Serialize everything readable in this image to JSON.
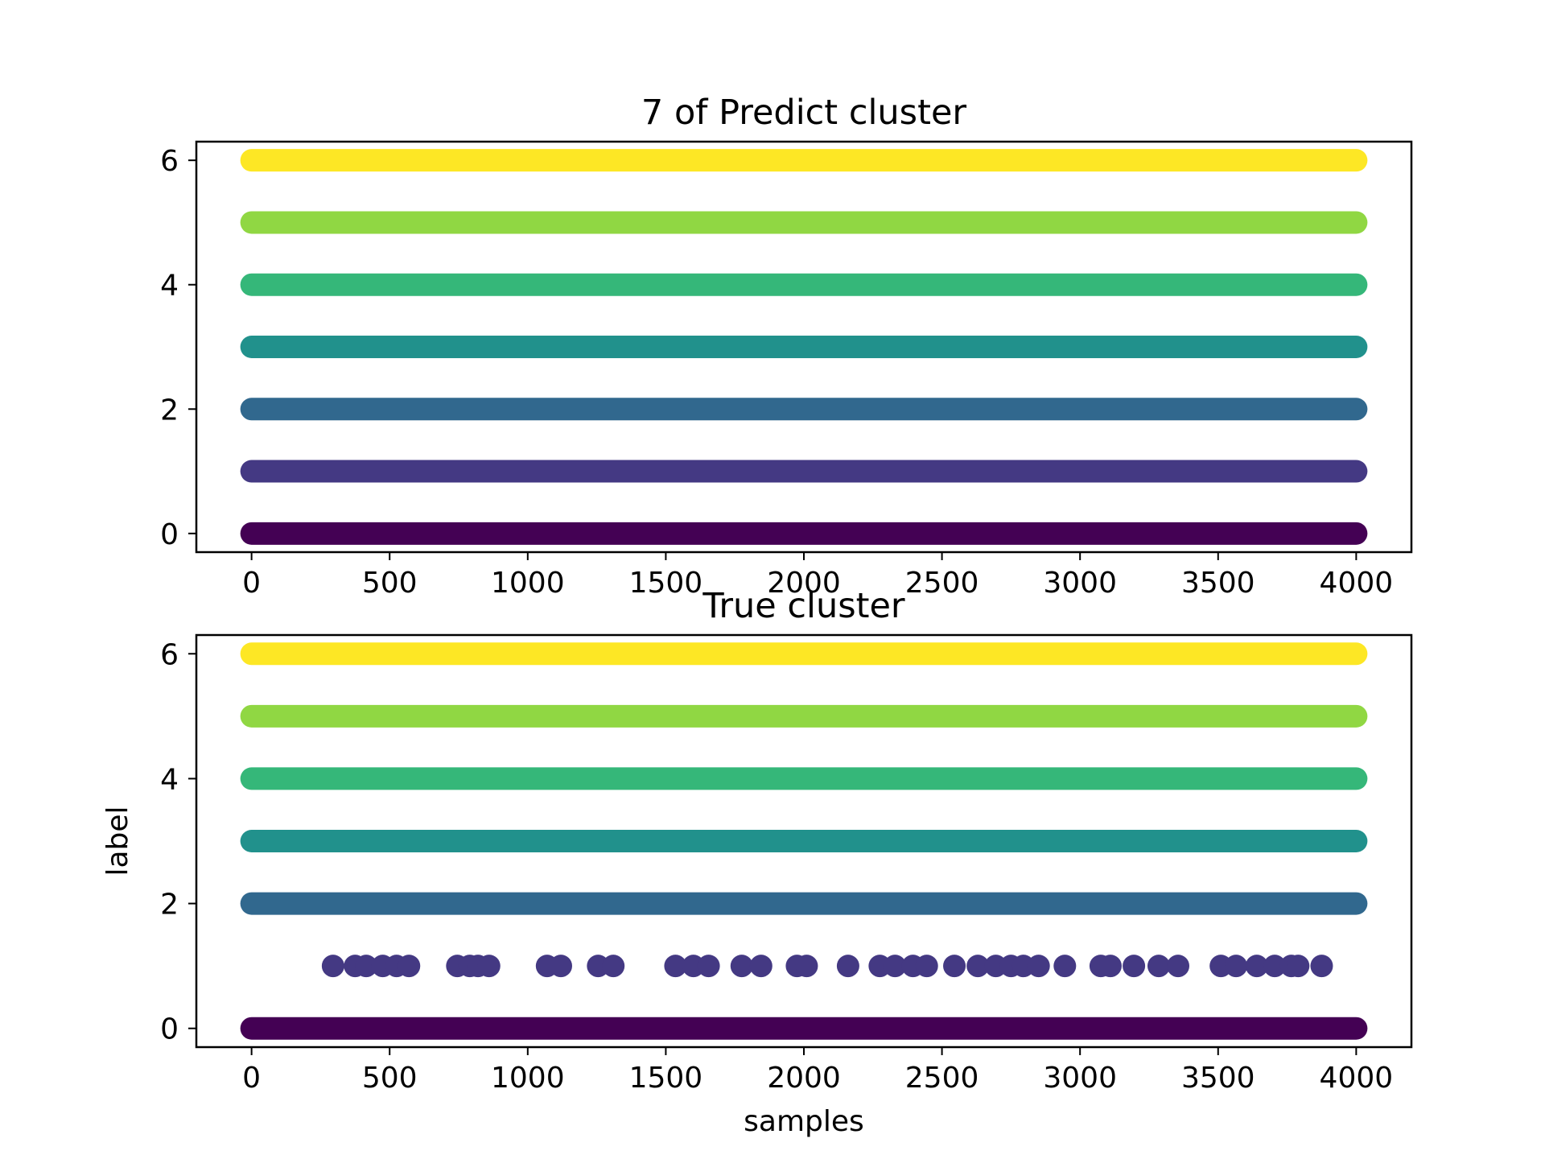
{
  "chart_data": [
    {
      "type": "scatter",
      "title": "7 of Predict cluster",
      "xlabel": "",
      "ylabel": "",
      "xlim": [
        -200,
        4200
      ],
      "ylim": [
        -0.3,
        6.3
      ],
      "xticks": [
        0,
        500,
        1000,
        1500,
        2000,
        2500,
        3000,
        3500,
        4000
      ],
      "yticks": [
        0,
        2,
        4,
        6
      ],
      "grid": false,
      "colors": [
        "#440154",
        "#443983",
        "#31688e",
        "#21918c",
        "#35b779",
        "#90d743",
        "#fde725"
      ],
      "rows": [
        {
          "label": 0,
          "runs": [
            [
              0,
              4000
            ]
          ]
        },
        {
          "label": 1,
          "runs": [
            [
              0,
              4000
            ]
          ]
        },
        {
          "label": 2,
          "runs": [
            [
              0,
              4000
            ]
          ]
        },
        {
          "label": 3,
          "runs": [
            [
              0,
              4000
            ]
          ]
        },
        {
          "label": 4,
          "runs": [
            [
              0,
              4000
            ]
          ]
        },
        {
          "label": 5,
          "runs": [
            [
              0,
              4000
            ]
          ]
        },
        {
          "label": 6,
          "runs": [
            [
              0,
              4000
            ]
          ]
        }
      ]
    },
    {
      "type": "scatter",
      "title": "True cluster",
      "xlabel": "samples",
      "ylabel": "label",
      "xlim": [
        -200,
        4200
      ],
      "ylim": [
        -0.3,
        6.3
      ],
      "xticks": [
        0,
        500,
        1000,
        1500,
        2000,
        2500,
        3000,
        3500,
        4000
      ],
      "yticks": [
        0,
        2,
        4,
        6
      ],
      "grid": false,
      "colors": [
        "#440154",
        "#443983",
        "#31688e",
        "#21918c",
        "#35b779",
        "#90d743",
        "#fde725"
      ],
      "rows": [
        {
          "label": 0,
          "runs": [
            [
              0,
              4000
            ]
          ]
        },
        {
          "label": 1,
          "points": [
            295,
            375,
            415,
            475,
            525,
            570,
            745,
            790,
            820,
            860,
            1070,
            1120,
            1255,
            1310,
            1535,
            1600,
            1655,
            1775,
            1845,
            1975,
            2010,
            2160,
            2275,
            2330,
            2395,
            2445,
            2545,
            2630,
            2695,
            2750,
            2795,
            2850,
            2945,
            3075,
            3110,
            3195,
            3285,
            3355,
            3510,
            3565,
            3640,
            3705,
            3765,
            3790,
            3875
          ]
        },
        {
          "label": 2,
          "runs": [
            [
              0,
              4000
            ]
          ]
        },
        {
          "label": 3,
          "runs": [
            [
              0,
              4000
            ]
          ]
        },
        {
          "label": 4,
          "runs": [
            [
              0,
              4000
            ]
          ]
        },
        {
          "label": 5,
          "runs": [
            [
              0,
              4000
            ]
          ]
        },
        {
          "label": 6,
          "runs": [
            [
              0,
              4000
            ]
          ]
        }
      ]
    }
  ]
}
